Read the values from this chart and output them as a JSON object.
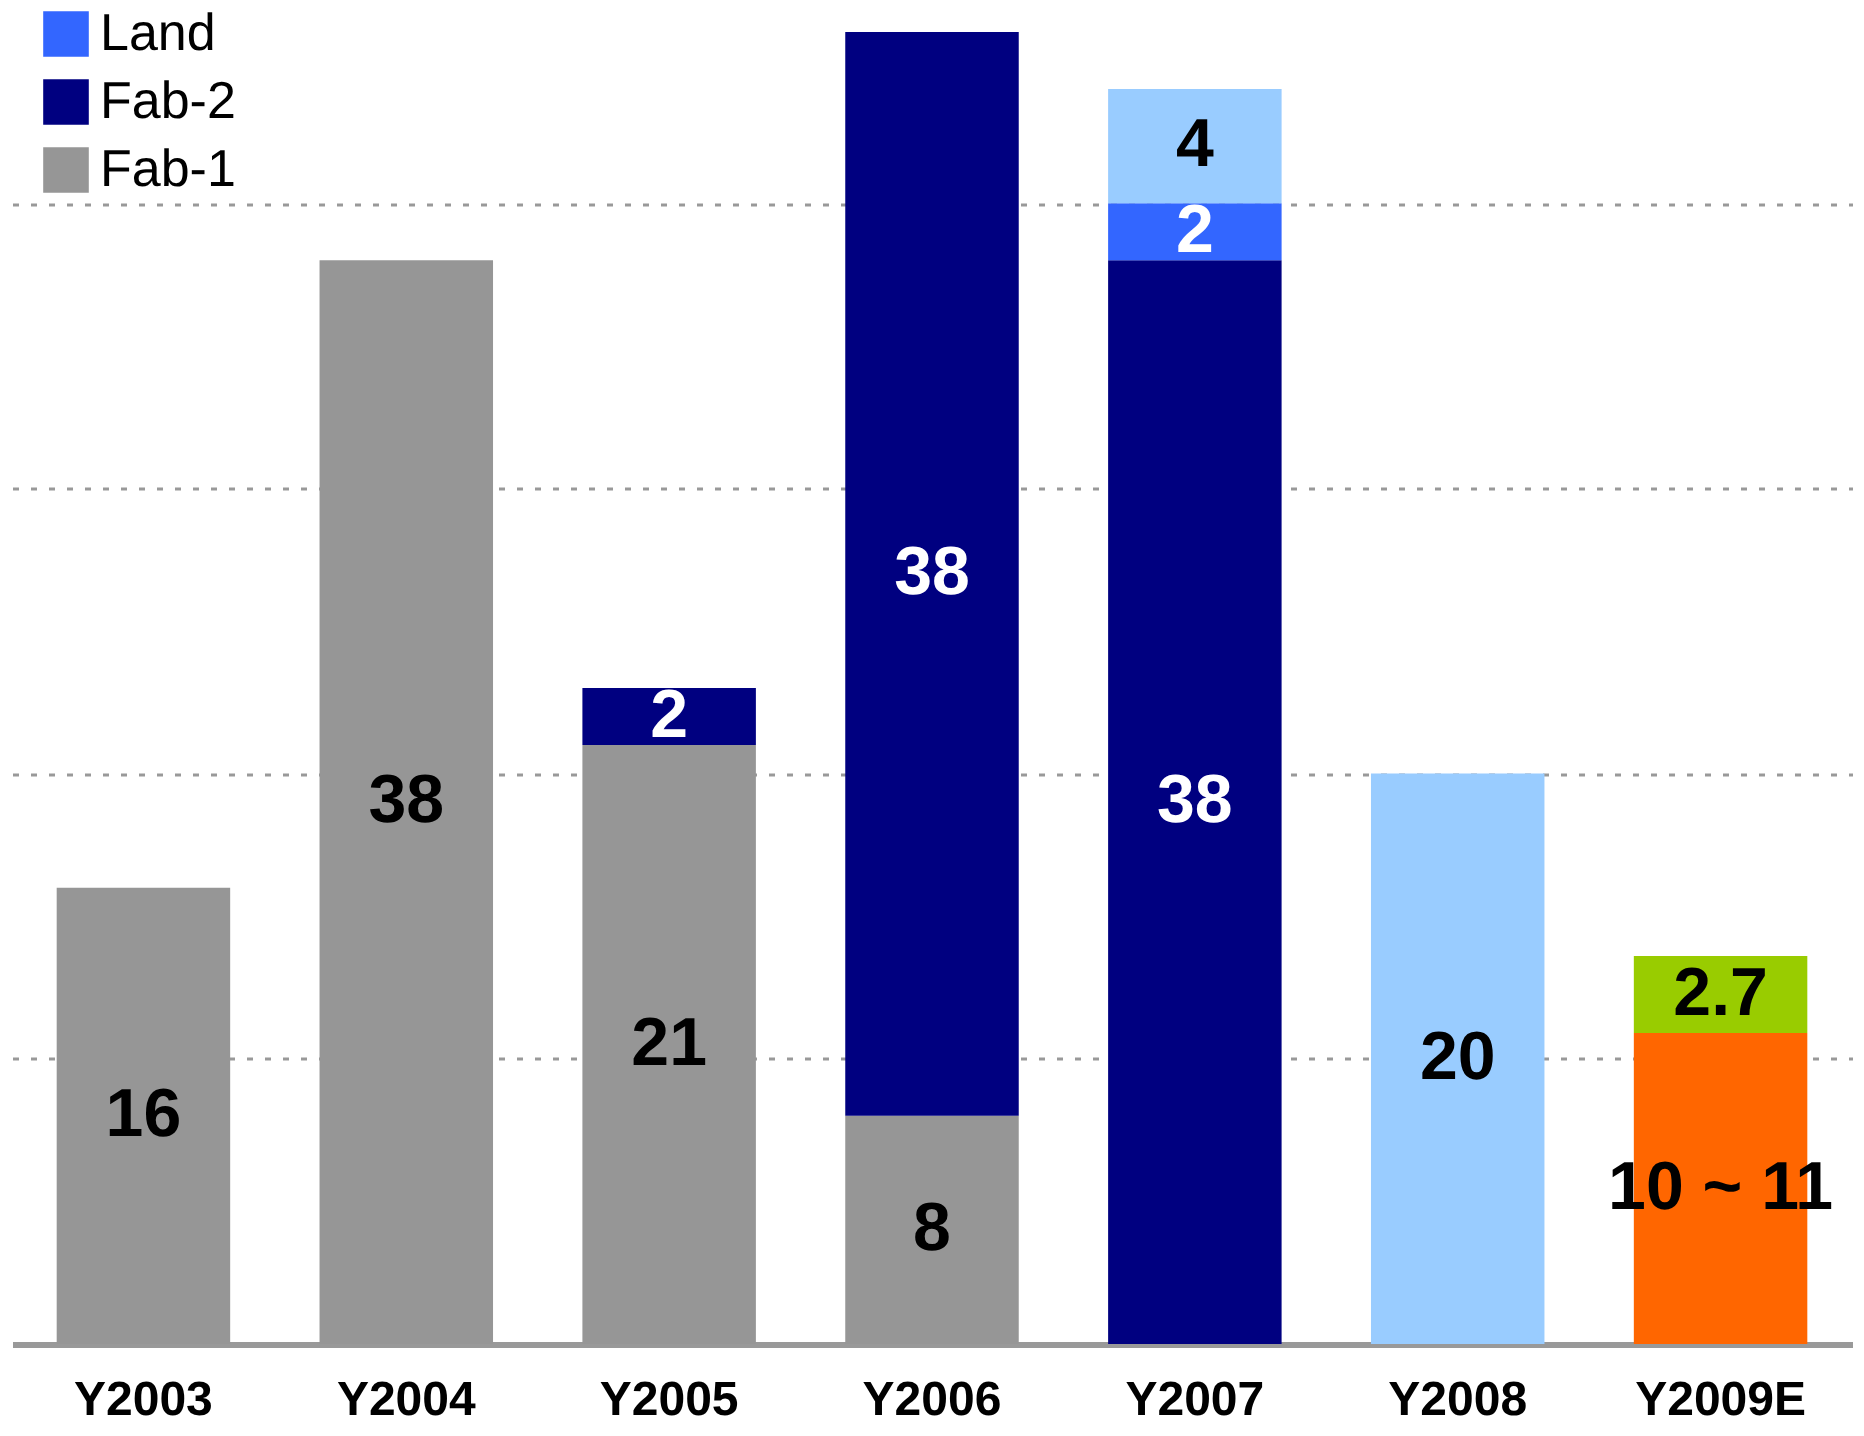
{
  "chart_data": {
    "type": "bar",
    "stacked": true,
    "categories": [
      "Y2003",
      "Y2004",
      "Y2005",
      "Y2006",
      "Y2007",
      "Y2008",
      "Y2009E"
    ],
    "series": [
      {
        "name": "Fab-1",
        "color": "#969696",
        "values": [
          16,
          38,
          21,
          8,
          null,
          null,
          null
        ],
        "value_labels": [
          "16",
          "38",
          "21",
          "8",
          null,
          null,
          null
        ]
      },
      {
        "name": "Fab-2",
        "color": "#000080",
        "values": [
          null,
          null,
          2,
          38,
          38,
          null,
          null
        ],
        "value_labels": [
          null,
          null,
          "2",
          "38",
          "38",
          null,
          null
        ]
      },
      {
        "name": "Land",
        "color": "#3366ff",
        "values": [
          null,
          null,
          null,
          null,
          2,
          null,
          null
        ],
        "value_labels": [
          null,
          null,
          null,
          null,
          "2",
          null,
          null
        ]
      },
      {
        "color": "#99ccff",
        "values": [
          null,
          null,
          null,
          null,
          4,
          20,
          null
        ],
        "value_labels": [
          null,
          null,
          null,
          null,
          "4",
          "20",
          null
        ]
      },
      {
        "color": "#ff6600",
        "values": [
          null,
          null,
          null,
          null,
          null,
          null,
          10.9
        ],
        "value_labels": [
          null,
          null,
          null,
          null,
          null,
          null,
          "10 ~ 11"
        ]
      },
      {
        "color": "#99cc00",
        "values": [
          null,
          null,
          null,
          null,
          null,
          null,
          2.7
        ],
        "value_labels": [
          null,
          null,
          null,
          null,
          null,
          null,
          "2.7"
        ]
      }
    ],
    "ylim": [
      0,
      46
    ],
    "yticks": [
      {
        "value": 10,
        "label": null
      },
      {
        "value": 20,
        "label": null
      },
      {
        "value": 30,
        "label": null
      },
      {
        "value": 40,
        "label": null
      }
    ],
    "grid": "y",
    "tick_labels": "x",
    "legend": "top left"
  }
}
